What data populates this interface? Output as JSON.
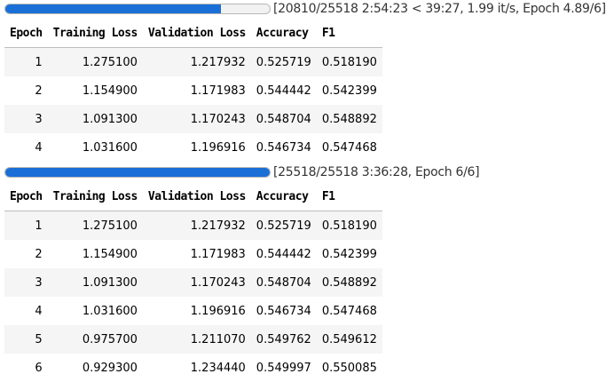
{
  "columns": [
    "Epoch",
    "Training Loss",
    "Validation Loss",
    "Accuracy",
    "F1"
  ],
  "runs": [
    {
      "progress_fraction": 0.815,
      "progress_text": "[20810/25518 2:54:23 < 39:27, 1.99 it/s, Epoch 4.89/6]",
      "rows": [
        [
          "1",
          "1.275100",
          "1.217932",
          "0.525719",
          "0.518190"
        ],
        [
          "2",
          "1.154900",
          "1.171983",
          "0.544442",
          "0.542399"
        ],
        [
          "3",
          "1.091300",
          "1.170243",
          "0.548704",
          "0.548892"
        ],
        [
          "4",
          "1.031600",
          "1.196916",
          "0.546734",
          "0.547468"
        ]
      ]
    },
    {
      "progress_fraction": 1.0,
      "progress_text": "[25518/25518 3:36:28, Epoch 6/6]",
      "rows": [
        [
          "1",
          "1.275100",
          "1.217932",
          "0.525719",
          "0.518190"
        ],
        [
          "2",
          "1.154900",
          "1.171983",
          "0.544442",
          "0.542399"
        ],
        [
          "3",
          "1.091300",
          "1.170243",
          "0.548704",
          "0.548892"
        ],
        [
          "4",
          "1.031600",
          "1.196916",
          "0.546734",
          "0.547468"
        ],
        [
          "5",
          "0.975700",
          "1.211070",
          "0.549762",
          "0.549612"
        ],
        [
          "6",
          "0.929300",
          "1.234440",
          "0.549997",
          "0.550085"
        ]
      ]
    }
  ],
  "colors": {
    "progress_fill": "#1a6fd6",
    "progress_track": "#f2f2f2",
    "row_stripe": "#f5f5f5"
  }
}
